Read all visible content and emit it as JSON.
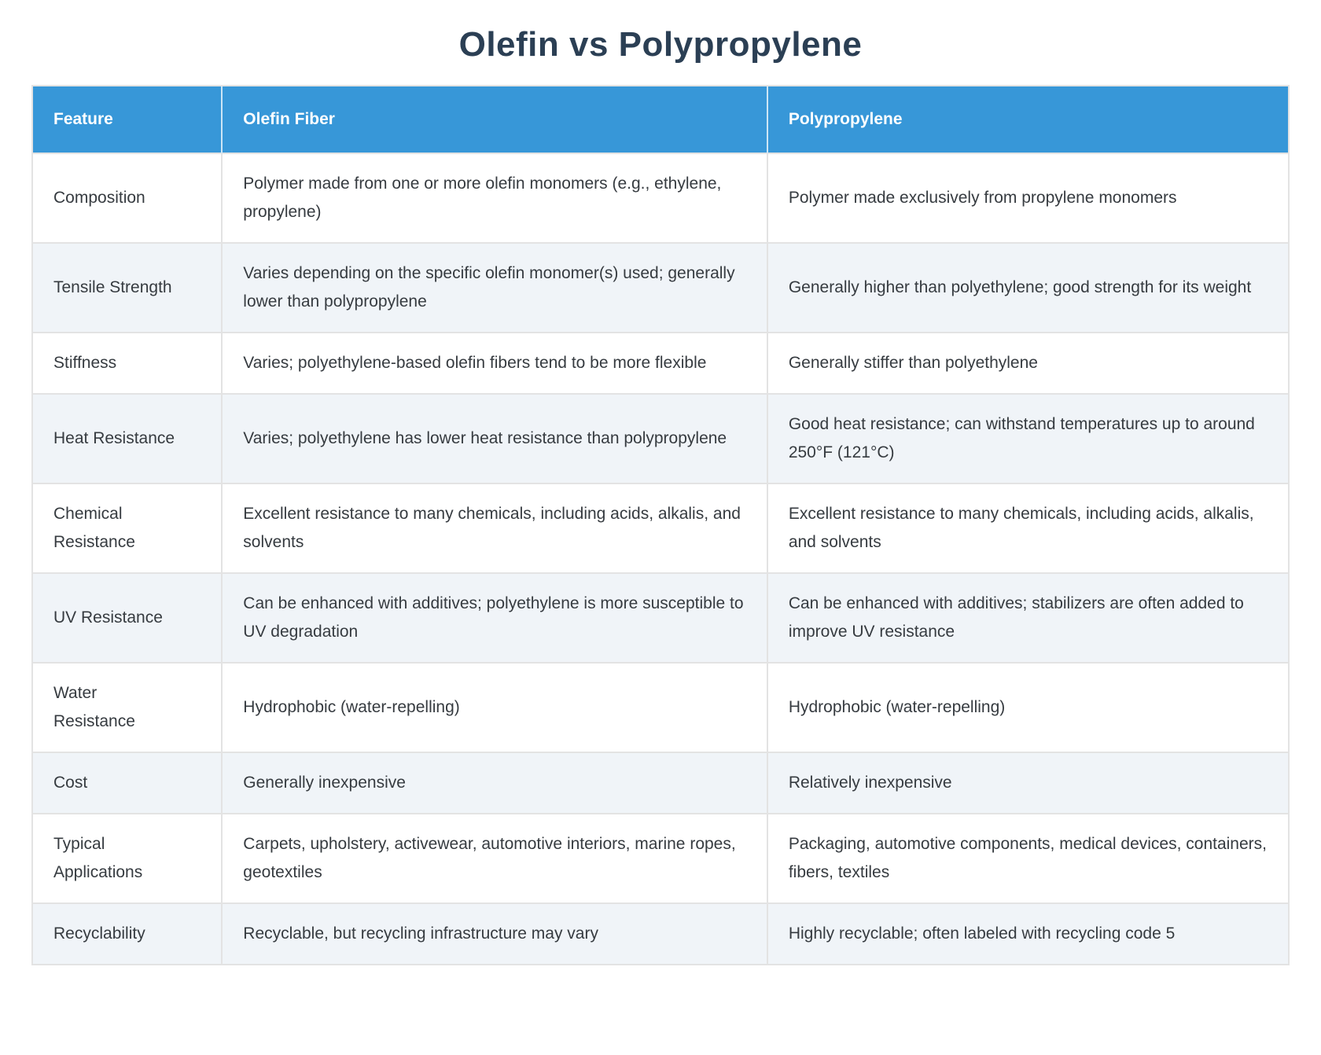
{
  "page": {
    "title": "Olefin vs Polypropylene"
  },
  "colors": {
    "header_background": "#3797d8",
    "header_text": "#ffffff",
    "title_text": "#2b3f54",
    "row_stripe": "#f0f4f8",
    "border": "#e3e3e3",
    "body_text": "#363b40"
  },
  "table": {
    "columns": [
      {
        "label": "Feature"
      },
      {
        "label": "Olefin Fiber"
      },
      {
        "label": "Polypropylene"
      }
    ],
    "rows": [
      {
        "feature": "Composition",
        "olefin_fiber": "Polymer made from one or more olefin monomers (e.g., ethylene, propylene)",
        "polypropylene": "Polymer made exclusively from propylene monomers"
      },
      {
        "feature": "Tensile Strength",
        "olefin_fiber": "Varies depending on the specific olefin monomer(s) used; generally lower than polypropylene",
        "polypropylene": "Generally higher than polyethylene; good strength for its weight"
      },
      {
        "feature": "Stiffness",
        "olefin_fiber": "Varies; polyethylene-based olefin fibers tend to be more flexible",
        "polypropylene": "Generally stiffer than polyethylene"
      },
      {
        "feature": "Heat Resistance",
        "olefin_fiber": "Varies; polyethylene has lower heat resistance than polypropylene",
        "polypropylene": "Good heat resistance; can withstand temperatures up to around 250°F (121°C)"
      },
      {
        "feature": "Chemical\nResistance",
        "olefin_fiber": "Excellent resistance to many chemicals, including acids, alkalis, and solvents",
        "polypropylene": "Excellent resistance to many chemicals, including acids, alkalis, and solvents"
      },
      {
        "feature": "UV Resistance",
        "olefin_fiber": "Can be enhanced with additives; polyethylene is more susceptible to UV degradation",
        "polypropylene": "Can be enhanced with additives; stabilizers are often added to improve UV resistance"
      },
      {
        "feature": "Water\nResistance",
        "olefin_fiber": "Hydrophobic (water-repelling)",
        "polypropylene": "Hydrophobic (water-repelling)"
      },
      {
        "feature": "Cost",
        "olefin_fiber": "Generally inexpensive",
        "polypropylene": "Relatively inexpensive"
      },
      {
        "feature": "Typical\nApplications",
        "olefin_fiber": "Carpets, upholstery, activewear, automotive interiors, marine ropes, geotextiles",
        "polypropylene": "Packaging, automotive components, medical devices, containers, fibers, textiles"
      },
      {
        "feature": "Recyclability",
        "olefin_fiber": "Recyclable, but recycling infrastructure may vary",
        "polypropylene": "Highly recyclable; often labeled with recycling code 5"
      }
    ]
  }
}
